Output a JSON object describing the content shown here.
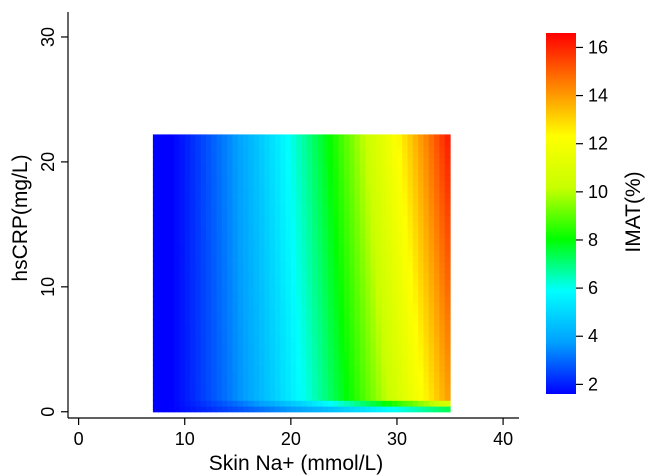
{
  "chart_data": {
    "type": "heatmap",
    "title": "",
    "xlabel": "Skin Na+ (mmol/L)",
    "ylabel": "hsCRP(mg/L)",
    "xlim": [
      -1,
      41.5
    ],
    "ylim": [
      -0.5,
      32
    ],
    "xticks": [
      0,
      10,
      20,
      30,
      40
    ],
    "yticks": [
      0,
      10,
      20,
      30
    ],
    "grid": false,
    "legend": "colorbar-right",
    "colorbar": {
      "label": "IMAT(%)",
      "range": [
        1.6,
        16.6
      ],
      "ticks": [
        2,
        4,
        6,
        8,
        10,
        12,
        14,
        16
      ],
      "colormap": [
        "#0000ff",
        "#00a0ff",
        "#00ffff",
        "#00ff00",
        "#c8ff00",
        "#ffff00",
        "#ff8000",
        "#ff0000"
      ]
    },
    "data_extent": {
      "x": [
        7,
        35
      ],
      "y": [
        0,
        22.2
      ]
    },
    "grid_resolution": {
      "nx": 56,
      "ny": 48
    },
    "sample_values": [
      {
        "x": 7,
        "y": 0,
        "imat": 3.0
      },
      {
        "x": 7,
        "y": 22,
        "imat": 1.8
      },
      {
        "x": 15,
        "y": 0,
        "imat": 5.0
      },
      {
        "x": 15,
        "y": 22,
        "imat": 5.5
      },
      {
        "x": 22,
        "y": 10,
        "imat": 8.8
      },
      {
        "x": 27,
        "y": 22,
        "imat": 12.0
      },
      {
        "x": 30,
        "y": 0,
        "imat": 8.5
      },
      {
        "x": 35,
        "y": 0,
        "imat": 9.6
      },
      {
        "x": 35,
        "y": 10,
        "imat": 14.5
      },
      {
        "x": 35,
        "y": 22,
        "imat": 16.6
      }
    ]
  }
}
